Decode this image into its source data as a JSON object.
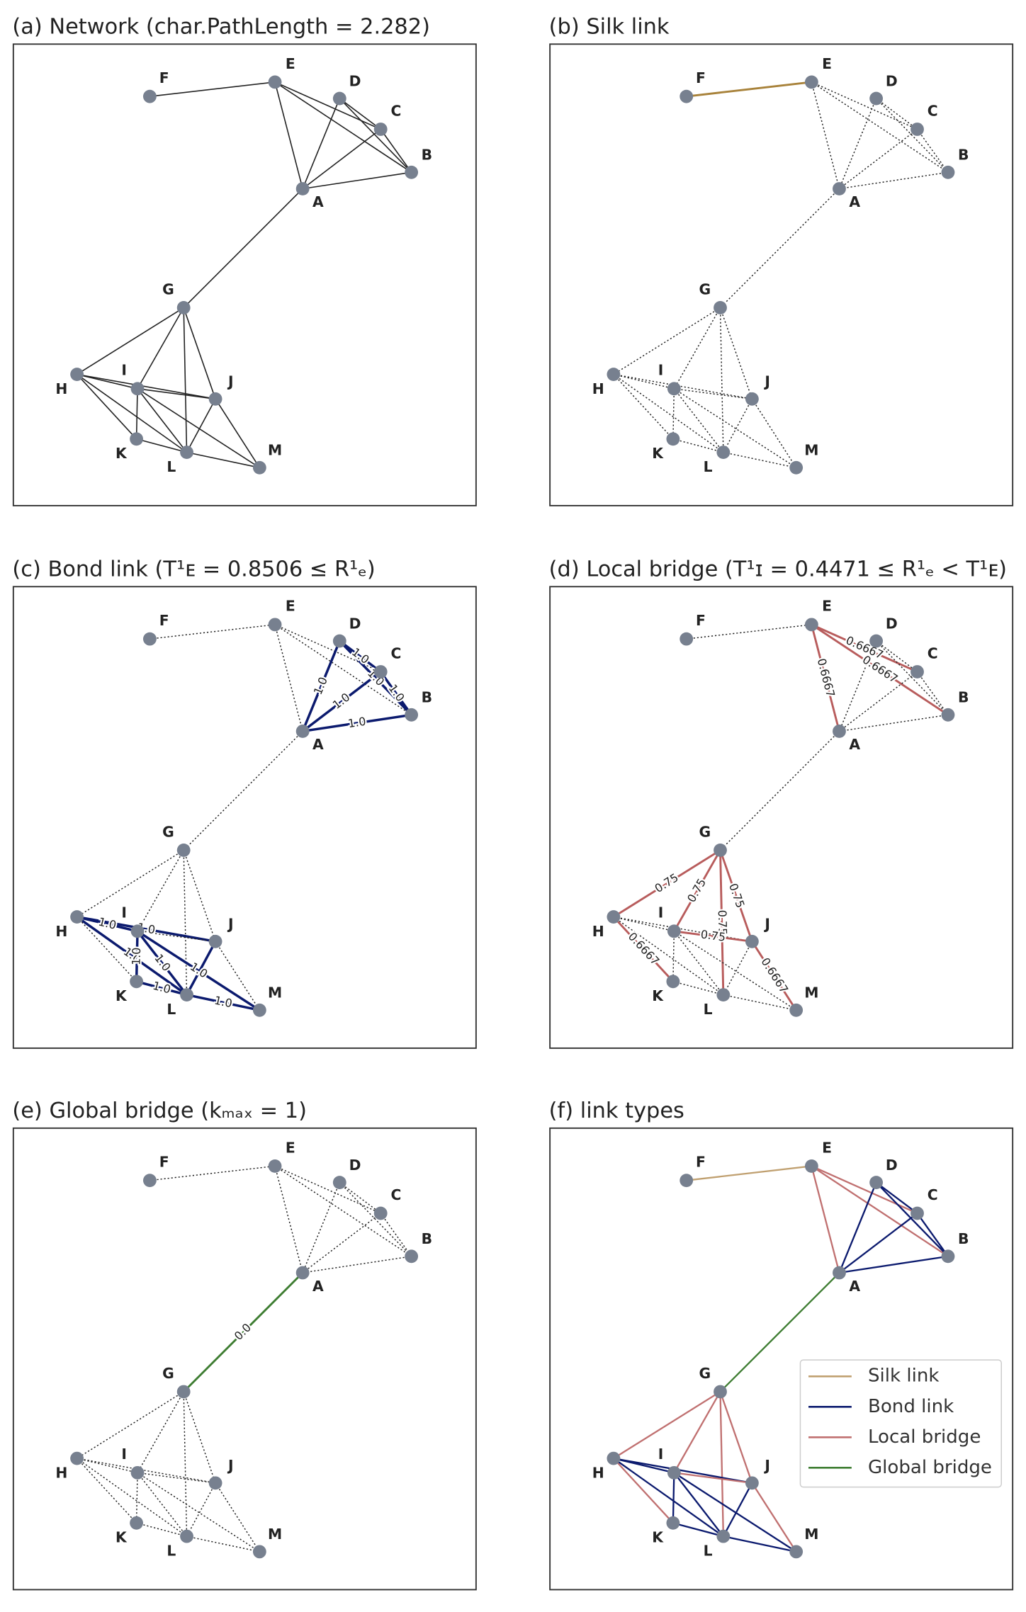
{
  "panels": [
    {
      "title": "(a) Network (char.PathLength = 2.282)",
      "edge_labels": []
    },
    {
      "title": "(b) Silk link",
      "edge_labels": []
    },
    {
      "title": "(c) Bond link (T¹ᴇ = 0.8506 ≤ R¹ₑ)",
      "edge_labels": [
        "1.0",
        "1.0",
        "1.0",
        "1.0",
        "1.0",
        "1.0",
        "1.0",
        "1.0",
        "1.0",
        "1.0",
        "1.0",
        "1.0",
        "1.0",
        "1.0"
      ]
    },
    {
      "title": "(d) Local bridge (T¹ɪ = 0.4471 ≤ R¹ₑ < T¹ᴇ)",
      "edge_labels": [
        "0.6667",
        "0.6667",
        "0.6667",
        "0.75",
        "0.75",
        "0.75",
        "0.75",
        "0.6667",
        "0.75",
        "0.6667"
      ]
    },
    {
      "title": "(e) Global bridge (kₘₐₓ = 1)",
      "edge_labels": [
        "0.0"
      ]
    },
    {
      "title": "(f) link types",
      "edge_labels": []
    }
  ],
  "nodes": [
    {
      "label": "A"
    },
    {
      "label": "B"
    },
    {
      "label": "C"
    },
    {
      "label": "D"
    },
    {
      "label": "E"
    },
    {
      "label": "F"
    },
    {
      "label": "G"
    },
    {
      "label": "H"
    },
    {
      "label": "I"
    },
    {
      "label": "J"
    },
    {
      "label": "K"
    },
    {
      "label": "L"
    },
    {
      "label": "M"
    }
  ],
  "legend": {
    "items": [
      "Silk link",
      "Bond link",
      "Local bridge",
      "Global bridge"
    ]
  }
}
